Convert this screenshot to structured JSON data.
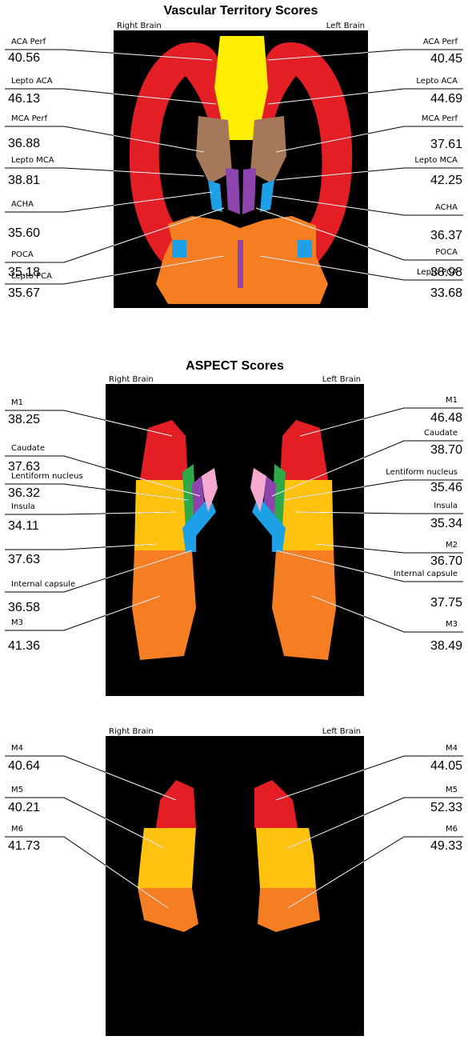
{
  "panels": [
    {
      "title": "Vascular Territory Scores",
      "right_brain": "Right Brain",
      "left_brain": "Left Brain",
      "left_column": [
        {
          "name": "ACA Perf",
          "score": "40.56"
        },
        {
          "name": "Lepto ACA",
          "score": "46.13"
        },
        {
          "name": "MCA Perf",
          "score": "36.88"
        },
        {
          "name": "Lepto MCA",
          "score": "38.81"
        },
        {
          "name": "ACHA",
          "score": "35.60"
        },
        {
          "name": "POCA",
          "score": "35.18"
        },
        {
          "name": "Lepto PCA",
          "score": "35.67"
        }
      ],
      "right_column": [
        {
          "name": "ACA Perf",
          "score": "40.45"
        },
        {
          "name": "Lepto ACA",
          "score": "44.69"
        },
        {
          "name": "MCA Perf",
          "score": "37.61"
        },
        {
          "name": "Lepto MCA",
          "score": "42.25"
        },
        {
          "name": "ACHA",
          "score": "36.37"
        },
        {
          "name": "POCA",
          "score": "38.98"
        },
        {
          "name": "Lepto PCA",
          "score": "33.68"
        }
      ]
    },
    {
      "title": "ASPECT Scores",
      "right_brain": "Right Brain",
      "left_brain": "Left Brain",
      "left_column": [
        {
          "name": "M1",
          "score": "38.25"
        },
        {
          "name": "Caudate",
          "score": "37.63"
        },
        {
          "name": "Lentiform nucleus",
          "score": "36.32"
        },
        {
          "name": "Insula",
          "score": "34.11"
        },
        {
          "score": "37.63"
        },
        {
          "name": "Internal capsule",
          "score": "36.58"
        },
        {
          "name": "M3",
          "score": "41.36"
        }
      ],
      "right_column": [
        {
          "name": "M1",
          "score": "46.48"
        },
        {
          "name": "Caudate",
          "score": "38.70"
        },
        {
          "name": "Lentiform nucleus",
          "score": "35.46"
        },
        {
          "name": "Insula",
          "score": "35.34"
        },
        {
          "name": "M2",
          "score": "36.70"
        },
        {
          "name": "Internal capsule",
          "score": "37.75"
        },
        {
          "name": "M3",
          "score": "38.49"
        }
      ]
    },
    {
      "right_brain": "Right Brain",
      "left_brain": "Left Brain",
      "left_column": [
        {
          "name": "M4",
          "score": "40.64"
        },
        {
          "name": "M5",
          "score": "40.21"
        },
        {
          "name": "M6",
          "score": "41.73"
        }
      ],
      "right_column": [
        {
          "name": "M4",
          "score": "44.05"
        },
        {
          "name": "M5",
          "score": "52.33"
        },
        {
          "name": "M6",
          "score": "49.33"
        }
      ]
    }
  ]
}
